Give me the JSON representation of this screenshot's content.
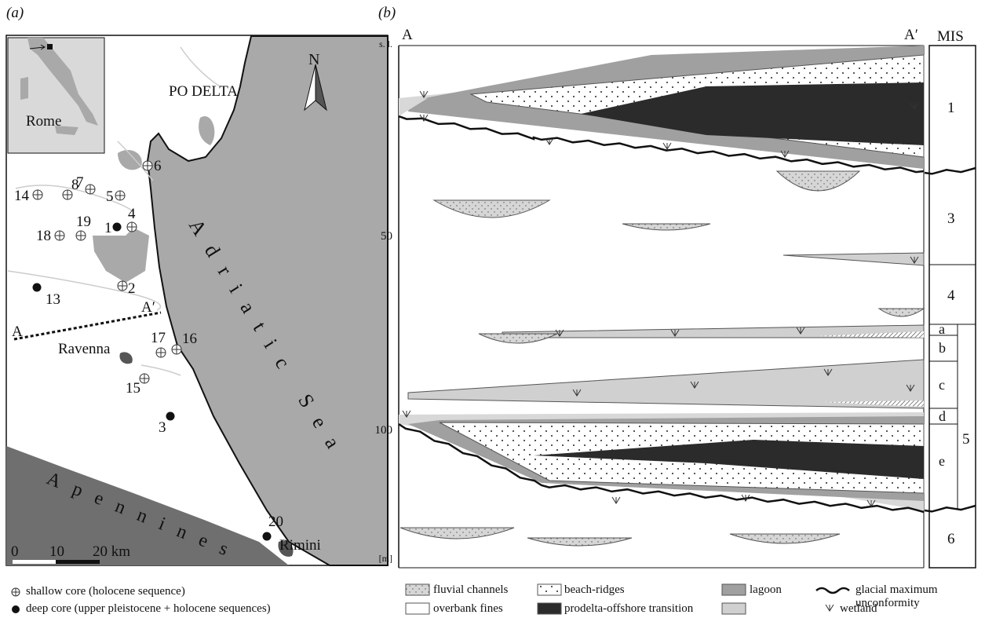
{
  "panel_a": {
    "label": "(a)",
    "inset_city": "Rome",
    "region": "PO DELTA",
    "north": "N",
    "sea": "Adriatic Sea",
    "mountains": "Apennines",
    "cities": [
      "Ravenna",
      "Rimini"
    ],
    "section_ends": [
      "A",
      "A′"
    ],
    "shallow_cores": [
      "14",
      "8",
      "7",
      "5",
      "6",
      "4",
      "19",
      "18",
      "2",
      "16",
      "17",
      "15"
    ],
    "deep_cores": [
      "1",
      "13",
      "3",
      "20"
    ],
    "scale": [
      "0",
      "10",
      "20 km"
    ],
    "legend": [
      "shallow core (holocene sequence)",
      "deep core (upper pleistocene + holocene sequences)"
    ]
  },
  "panel_b": {
    "label": "(b)",
    "section_ends": [
      "A",
      "A′"
    ],
    "depth_labels": [
      "s. l.",
      "50",
      "100",
      "[m]"
    ],
    "mis_title": "MIS",
    "mis_stages": [
      "1",
      "3",
      "4",
      "5",
      "6"
    ],
    "mis5_substages": [
      "a",
      "b",
      "c",
      "d",
      "e"
    ],
    "legend": [
      "fluvial channels",
      "beach-ridges",
      "lagoon",
      "glacial maximum unconformity",
      "overbank fines",
      "prodelta-offshore transition",
      "wetland"
    ]
  }
}
